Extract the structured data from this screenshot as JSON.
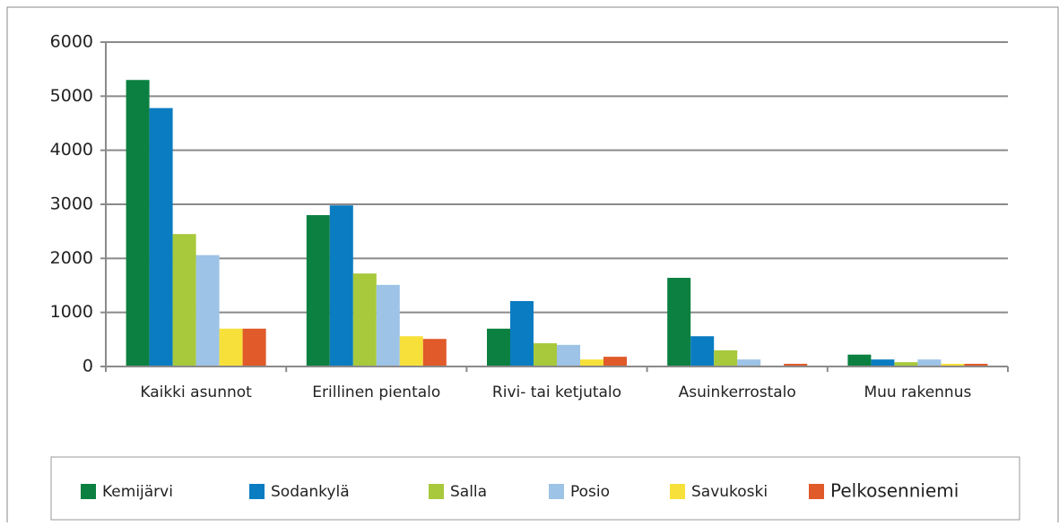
{
  "chart_data": {
    "type": "bar",
    "categories": [
      "Kaikki asunnot",
      "Erillinen pientalo",
      "Rivi- tai ketjutalo",
      "Asuinkerrostalo",
      "Muu rakennus"
    ],
    "series": [
      {
        "name": "Kemijärvi",
        "color": "#0b8040",
        "values": [
          5300,
          2800,
          700,
          1640,
          220
        ]
      },
      {
        "name": "Sodankylä",
        "color": "#0a7cc1",
        "values": [
          4780,
          2980,
          1210,
          560,
          130
        ]
      },
      {
        "name": "Salla",
        "color": "#a7c93b",
        "values": [
          2450,
          1720,
          430,
          300,
          80
        ]
      },
      {
        "name": "Posio",
        "color": "#9dc3e6",
        "values": [
          2060,
          1510,
          400,
          130,
          130
        ]
      },
      {
        "name": "Savukoski",
        "color": "#f8e03a",
        "values": [
          700,
          560,
          130,
          10,
          50
        ]
      },
      {
        "name": "Pelkosenniemi",
        "color": "#e05a2a",
        "values": [
          700,
          510,
          180,
          50,
          50
        ]
      }
    ],
    "ylim": [
      0,
      6000
    ],
    "yticks": [
      0,
      1000,
      2000,
      3000,
      4000,
      5000,
      6000
    ],
    "grid": true,
    "legend": "bottom"
  }
}
